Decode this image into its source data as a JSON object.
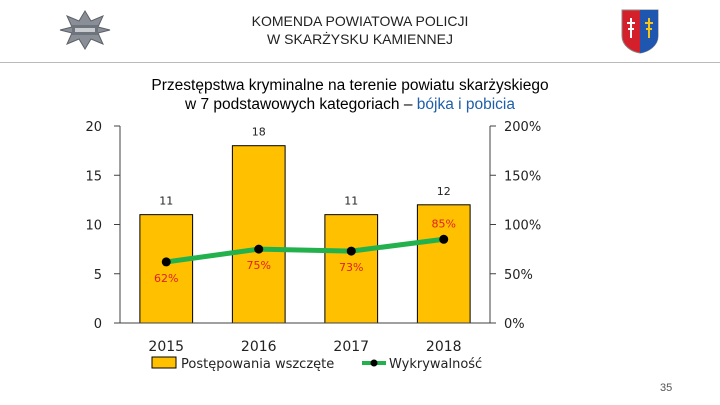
{
  "header": {
    "line1": "KOMENDA POWIATOWA POLICJI",
    "line2": "W SKARŻYSKU KAMIENNEJ",
    "police_badge_icon": "police-star-badge-icon",
    "crest_icon": "coat-of-arms-icon"
  },
  "slide_number": "35",
  "chart_data": {
    "type": "bar+line",
    "title_line1": "Przestępstwa kryminalne na terenie powiatu skarżyskiego",
    "title_line2_prefix": "w 7 podstawowych kategoriach – ",
    "title_line2_highlight": "bójka i pobicia",
    "categories": [
      "2015",
      "2016",
      "2017",
      "2018"
    ],
    "series": [
      {
        "name": "Postępowania wszczęte",
        "type": "bar",
        "axis": "left",
        "values": [
          11,
          18,
          11,
          12
        ],
        "labels": [
          "11",
          "18",
          "11",
          "12"
        ],
        "color": "#FFC000"
      },
      {
        "name": "Wykrywalność",
        "type": "line",
        "axis": "right",
        "values": [
          62,
          75,
          73,
          85
        ],
        "labels": [
          "62%",
          "75%",
          "73%",
          "85%"
        ],
        "color": "#22B14C",
        "marker_color": "#000000"
      }
    ],
    "y_left": {
      "ticks": [
        "0",
        "5",
        "10",
        "15",
        "20"
      ],
      "min": 0,
      "max": 20
    },
    "y_right": {
      "ticks": [
        "0%",
        "50%",
        "100%",
        "150%",
        "200%"
      ],
      "min": 0,
      "max": 200
    },
    "label_color": "#E02020",
    "legend": "bottom"
  }
}
